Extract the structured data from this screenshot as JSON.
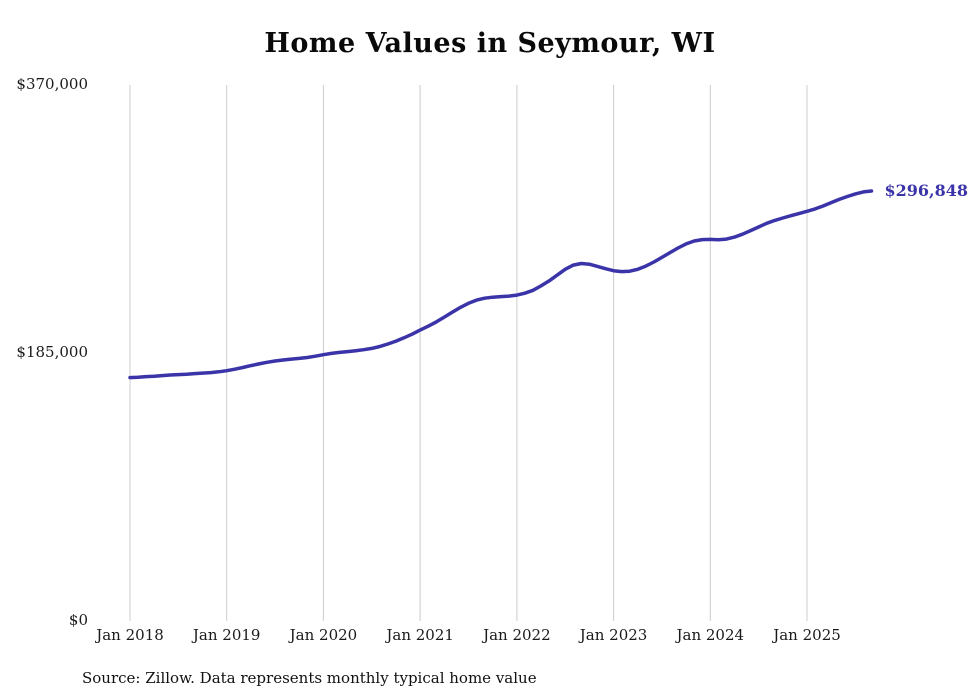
{
  "source_note": "Source: Zillow. Data represents monthly typical home value",
  "chart_data": {
    "type": "line",
    "title": "Home Values in Seymour, WI",
    "series_name": "Monthly typical home value",
    "unit": "USD",
    "frequency": "monthly",
    "start_month": "2018-01",
    "end_month": "2025-09",
    "ylim": [
      0,
      370000
    ],
    "grid": "vertical-only",
    "line_color": "#3b34a8",
    "grid_color": "#cccccc",
    "end_label": "$296,848",
    "end_value": 296848,
    "y_ticks": [
      {
        "value": 0,
        "label": "$0"
      },
      {
        "value": 185000,
        "label": "$185,000"
      },
      {
        "value": 370000,
        "label": "$370,000"
      }
    ],
    "x_ticks": [
      {
        "month_index": 0,
        "label": "Jan 2018"
      },
      {
        "month_index": 12,
        "label": "Jan 2019"
      },
      {
        "month_index": 24,
        "label": "Jan 2020"
      },
      {
        "month_index": 36,
        "label": "Jan 2021"
      },
      {
        "month_index": 48,
        "label": "Jan 2022"
      },
      {
        "month_index": 60,
        "label": "Jan 2023"
      },
      {
        "month_index": 72,
        "label": "Jan 2024"
      },
      {
        "month_index": 84,
        "label": "Jan 2025"
      }
    ],
    "values": [
      168000,
      168300,
      168700,
      169000,
      169400,
      169800,
      170100,
      170400,
      170800,
      171100,
      171500,
      172000,
      172800,
      173800,
      175000,
      176300,
      177500,
      178600,
      179500,
      180200,
      180800,
      181300,
      181900,
      182800,
      183800,
      184700,
      185400,
      186000,
      186600,
      187300,
      188200,
      189500,
      191200,
      193200,
      195500,
      198000,
      200800,
      203500,
      206500,
      209800,
      213200,
      216500,
      219300,
      221500,
      222800,
      223500,
      223900,
      224300,
      225000,
      226300,
      228300,
      231300,
      234800,
      238800,
      242800,
      245700,
      246800,
      246300,
      244800,
      243200,
      241800,
      241200,
      241500,
      242800,
      245000,
      247800,
      251000,
      254300,
      257500,
      260300,
      262300,
      263300,
      263400,
      263200,
      263600,
      265000,
      267000,
      269500,
      272000,
      274500,
      276500,
      278200,
      279800,
      281200,
      282800,
      284500,
      286500,
      288800,
      291000,
      293000,
      294800,
      296200,
      296848
    ]
  }
}
